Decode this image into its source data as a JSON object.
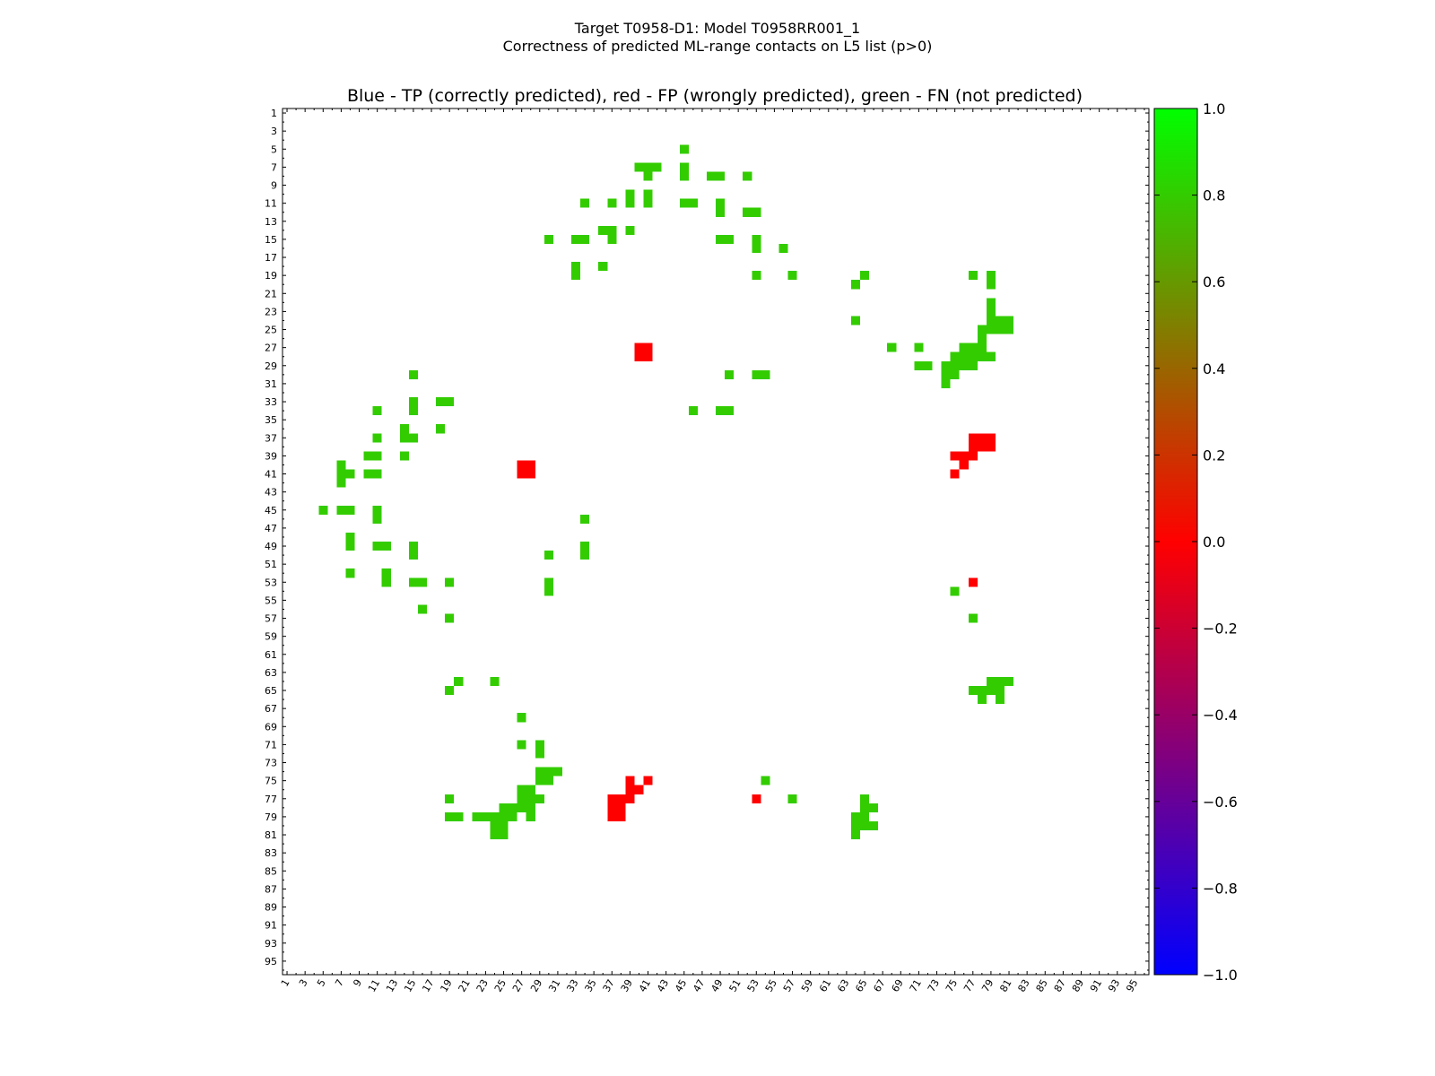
{
  "chart_data": {
    "type": "heatmap",
    "title_line1": "Target T0958-D1: Model T0958RR001_1",
    "title_line2": "Correctness of predicted ML-range contacts on L5 list (p>0)",
    "subtitle": "Blue - TP (correctly predicted), red - FP (wrongly predicted), green - FN (not predicted)",
    "xlabel": "",
    "ylabel": "",
    "n": 96,
    "xlim": [
      1,
      96
    ],
    "ylim": [
      1,
      96
    ],
    "x_ticks": [
      "1",
      "3",
      "5",
      "7",
      "9",
      "11",
      "13",
      "15",
      "17",
      "19",
      "21",
      "23",
      "25",
      "27",
      "29",
      "31",
      "33",
      "35",
      "37",
      "39",
      "41",
      "43",
      "45",
      "47",
      "49",
      "51",
      "53",
      "55",
      "57",
      "59",
      "61",
      "63",
      "65",
      "67",
      "69",
      "71",
      "73",
      "75",
      "77",
      "79",
      "81",
      "83",
      "85",
      "87",
      "89",
      "91",
      "93",
      "95"
    ],
    "y_ticks": [
      "1",
      "3",
      "5",
      "7",
      "9",
      "11",
      "13",
      "15",
      "17",
      "19",
      "21",
      "23",
      "25",
      "27",
      "29",
      "31",
      "33",
      "35",
      "37",
      "39",
      "41",
      "43",
      "45",
      "47",
      "49",
      "51",
      "53",
      "55",
      "57",
      "59",
      "61",
      "63",
      "65",
      "67",
      "69",
      "71",
      "73",
      "75",
      "77",
      "79",
      "81",
      "83",
      "85",
      "87",
      "89",
      "91",
      "93",
      "95"
    ],
    "colorbar": {
      "min": -1.0,
      "max": 1.0,
      "ticks": [
        "1.0",
        "0.8",
        "0.6",
        "0.4",
        "0.2",
        "0.0",
        "−0.2",
        "−0.4",
        "−0.6",
        "−0.8",
        "−1.0"
      ],
      "colors": [
        "#00ff00",
        "#ff0000",
        "#0000ff"
      ]
    },
    "colors": {
      "fn": "#33cc00",
      "fp": "#ff0000",
      "tp": "#0000ff"
    },
    "fn_cells": [
      [
        45,
        5
      ],
      [
        40,
        7
      ],
      [
        41,
        7
      ],
      [
        42,
        7
      ],
      [
        45,
        7
      ],
      [
        41,
        8
      ],
      [
        45,
        8
      ],
      [
        48,
        8
      ],
      [
        49,
        8
      ],
      [
        52,
        8
      ],
      [
        34,
        11
      ],
      [
        37,
        11
      ],
      [
        39,
        10
      ],
      [
        39,
        11
      ],
      [
        41,
        10
      ],
      [
        41,
        11
      ],
      [
        45,
        11
      ],
      [
        46,
        11
      ],
      [
        49,
        11
      ],
      [
        49,
        12
      ],
      [
        52,
        12
      ],
      [
        53,
        12
      ],
      [
        36,
        14
      ],
      [
        37,
        14
      ],
      [
        37,
        15
      ],
      [
        39,
        14
      ],
      [
        30,
        15
      ],
      [
        33,
        15
      ],
      [
        34,
        15
      ],
      [
        49,
        15
      ],
      [
        50,
        15
      ],
      [
        53,
        15
      ],
      [
        53,
        16
      ],
      [
        56,
        16
      ],
      [
        36,
        18
      ],
      [
        33,
        18
      ],
      [
        33,
        19
      ],
      [
        53,
        19
      ],
      [
        57,
        19
      ],
      [
        65,
        19
      ],
      [
        64,
        20
      ],
      [
        77,
        19
      ],
      [
        79,
        19
      ],
      [
        79,
        20
      ],
      [
        64,
        24
      ],
      [
        79,
        22
      ],
      [
        79,
        23
      ],
      [
        79,
        24
      ],
      [
        80,
        24
      ],
      [
        81,
        24
      ],
      [
        81,
        25
      ],
      [
        78,
        25
      ],
      [
        79,
        25
      ],
      [
        80,
        25
      ],
      [
        78,
        26
      ],
      [
        76,
        27
      ],
      [
        77,
        27
      ],
      [
        78,
        27
      ],
      [
        68,
        27
      ],
      [
        71,
        27
      ],
      [
        75,
        28
      ],
      [
        76,
        28
      ],
      [
        77,
        28
      ],
      [
        78,
        28
      ],
      [
        79,
        28
      ],
      [
        71,
        29
      ],
      [
        72,
        29
      ],
      [
        74,
        29
      ],
      [
        75,
        29
      ],
      [
        76,
        29
      ],
      [
        77,
        29
      ],
      [
        74,
        30
      ],
      [
        75,
        30
      ],
      [
        74,
        31
      ],
      [
        15,
        30
      ],
      [
        50,
        30
      ],
      [
        53,
        30
      ],
      [
        54,
        30
      ],
      [
        15,
        33
      ],
      [
        15,
        34
      ],
      [
        18,
        33
      ],
      [
        19,
        33
      ],
      [
        11,
        34
      ],
      [
        46,
        34
      ],
      [
        49,
        34
      ],
      [
        50,
        34
      ],
      [
        14,
        36
      ],
      [
        18,
        36
      ],
      [
        14,
        37
      ],
      [
        15,
        37
      ],
      [
        11,
        37
      ],
      [
        10,
        39
      ],
      [
        11,
        39
      ],
      [
        14,
        39
      ],
      [
        7,
        40
      ],
      [
        7,
        41
      ],
      [
        8,
        41
      ],
      [
        7,
        42
      ],
      [
        10,
        41
      ],
      [
        11,
        41
      ],
      [
        5,
        45
      ],
      [
        7,
        45
      ],
      [
        8,
        45
      ],
      [
        11,
        45
      ],
      [
        11,
        46
      ],
      [
        34,
        46
      ],
      [
        8,
        48
      ],
      [
        8,
        49
      ],
      [
        11,
        49
      ],
      [
        12,
        49
      ],
      [
        15,
        49
      ],
      [
        15,
        50
      ],
      [
        34,
        49
      ],
      [
        34,
        50
      ],
      [
        30,
        50
      ],
      [
        8,
        52
      ],
      [
        12,
        52
      ],
      [
        12,
        53
      ],
      [
        15,
        53
      ],
      [
        16,
        53
      ],
      [
        19,
        53
      ],
      [
        30,
        53
      ],
      [
        30,
        54
      ],
      [
        75,
        54
      ],
      [
        16,
        56
      ],
      [
        19,
        57
      ],
      [
        77,
        57
      ],
      [
        20,
        64
      ],
      [
        19,
        65
      ],
      [
        24,
        64
      ],
      [
        79,
        64
      ],
      [
        80,
        64
      ],
      [
        81,
        64
      ],
      [
        77,
        65
      ],
      [
        78,
        65
      ],
      [
        79,
        65
      ],
      [
        80,
        65
      ],
      [
        78,
        66
      ],
      [
        80,
        66
      ],
      [
        27,
        68
      ],
      [
        27,
        71
      ],
      [
        29,
        71
      ],
      [
        29,
        72
      ],
      [
        29,
        74
      ],
      [
        30,
        74
      ],
      [
        31,
        74
      ],
      [
        29,
        75
      ],
      [
        30,
        75
      ],
      [
        27,
        76
      ],
      [
        28,
        76
      ],
      [
        27,
        77
      ],
      [
        28,
        77
      ],
      [
        19,
        77
      ],
      [
        29,
        77
      ],
      [
        26,
        78
      ],
      [
        27,
        78
      ],
      [
        28,
        78
      ],
      [
        25,
        78
      ],
      [
        19,
        79
      ],
      [
        20,
        79
      ],
      [
        22,
        79
      ],
      [
        23,
        79
      ],
      [
        24,
        79
      ],
      [
        25,
        79
      ],
      [
        26,
        79
      ],
      [
        28,
        79
      ],
      [
        24,
        80
      ],
      [
        25,
        80
      ],
      [
        24,
        81
      ],
      [
        25,
        81
      ],
      [
        54,
        75
      ],
      [
        57,
        77
      ],
      [
        65,
        77
      ],
      [
        65,
        78
      ],
      [
        66,
        78
      ],
      [
        64,
        79
      ],
      [
        65,
        79
      ],
      [
        64,
        80
      ],
      [
        65,
        80
      ],
      [
        66,
        80
      ],
      [
        64,
        81
      ]
    ],
    "fp_cells": [
      [
        40,
        27
      ],
      [
        41,
        27
      ],
      [
        40,
        28
      ],
      [
        41,
        28
      ],
      [
        27,
        40
      ],
      [
        28,
        40
      ],
      [
        27,
        41
      ],
      [
        28,
        41
      ],
      [
        77,
        37
      ],
      [
        78,
        37
      ],
      [
        79,
        37
      ],
      [
        77,
        38
      ],
      [
        78,
        38
      ],
      [
        79,
        38
      ],
      [
        75,
        39
      ],
      [
        76,
        39
      ],
      [
        77,
        39
      ],
      [
        76,
        40
      ],
      [
        75,
        41
      ],
      [
        77,
        53
      ],
      [
        39,
        75
      ],
      [
        41,
        75
      ],
      [
        39,
        76
      ],
      [
        40,
        76
      ],
      [
        37,
        77
      ],
      [
        38,
        77
      ],
      [
        39,
        77
      ],
      [
        37,
        78
      ],
      [
        38,
        78
      ],
      [
        37,
        79
      ],
      [
        38,
        79
      ],
      [
        53,
        77
      ]
    ],
    "tp_cells": []
  }
}
